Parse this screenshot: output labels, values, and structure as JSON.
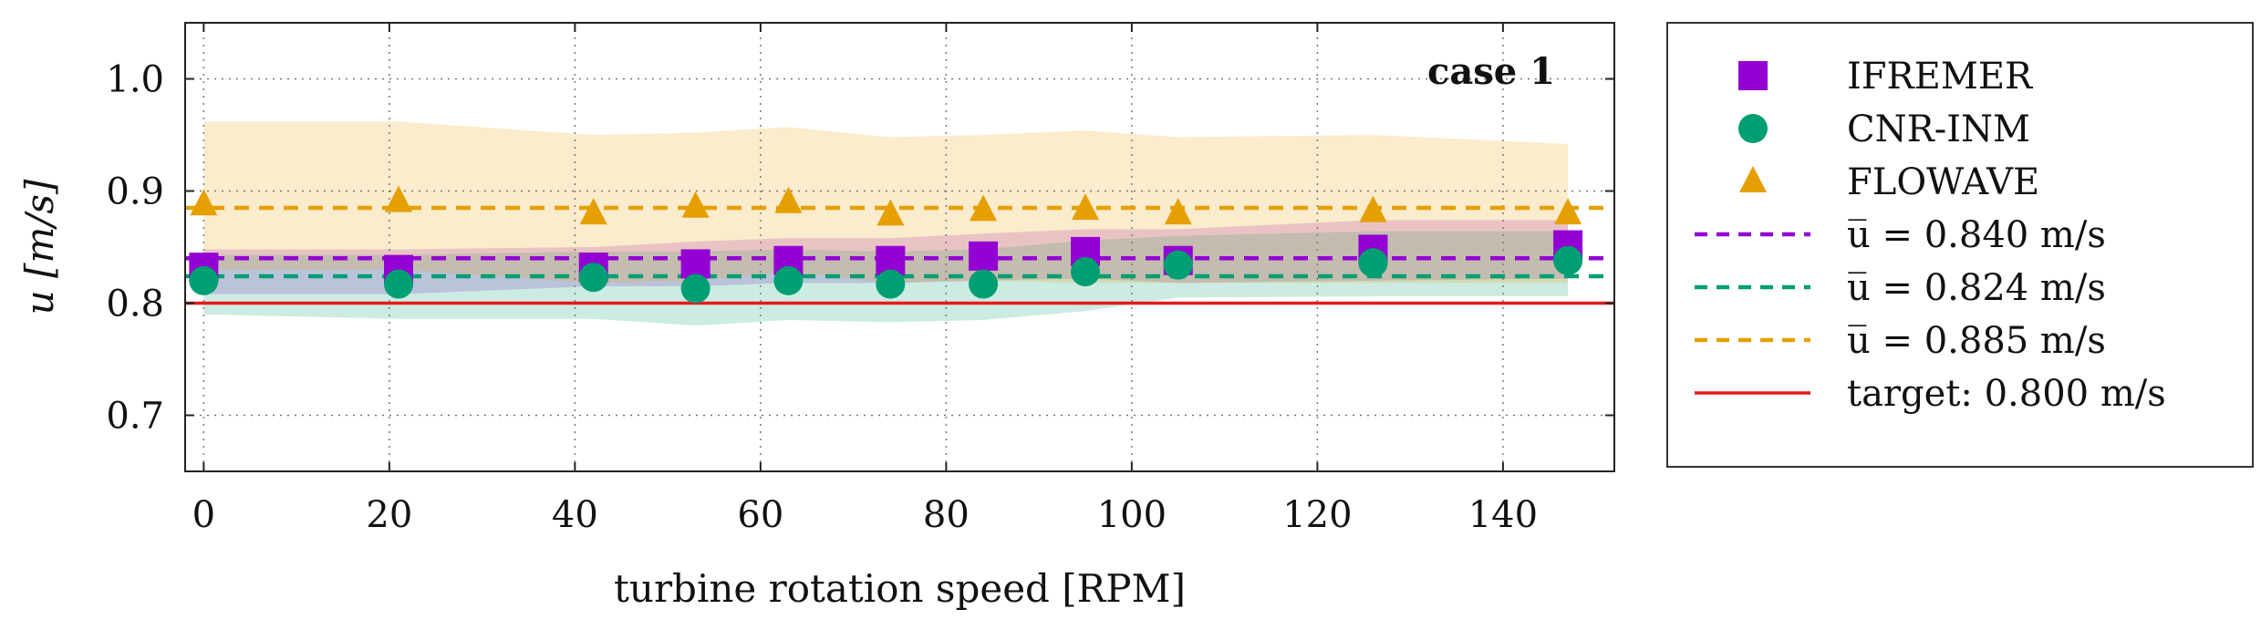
{
  "chart_data": {
    "type": "scatter",
    "annotation": "case 1",
    "xlabel": "turbine rotation speed [RPM]",
    "ylabel": "u [m/s]",
    "xlim": [
      -2,
      152
    ],
    "ylim": [
      0.65,
      1.05
    ],
    "xticks": [
      0,
      20,
      40,
      60,
      80,
      100,
      120,
      140
    ],
    "yticks": [
      0.7,
      0.8,
      0.9,
      1.0
    ],
    "xtick_labels": [
      "0",
      "20",
      "40",
      "60",
      "80",
      "100",
      "120",
      "140"
    ],
    "ytick_labels": [
      "0.7",
      "0.8",
      "0.9",
      "1.0"
    ],
    "grid": true,
    "legend_position": "outside-right",
    "series": [
      {
        "name": "Ifremer",
        "label": "IFREMER",
        "marker": "square",
        "color": "#9400D3",
        "x": [
          0,
          21,
          42,
          53,
          63,
          74,
          84,
          95,
          105,
          126,
          147
        ],
        "y": [
          0.832,
          0.83,
          0.832,
          0.835,
          0.838,
          0.838,
          0.842,
          0.846,
          0.838,
          0.848,
          0.852
        ],
        "band_upper": [
          0.848,
          0.848,
          0.85,
          0.855,
          0.858,
          0.858,
          0.862,
          0.866,
          0.866,
          0.874,
          0.874
        ],
        "band_lower": [
          0.808,
          0.808,
          0.815,
          0.815,
          0.818,
          0.818,
          0.82,
          0.822,
          0.818,
          0.82,
          0.822
        ]
      },
      {
        "name": "Cnr-Inm",
        "label": "CNR-INM",
        "marker": "circle",
        "color": "#009E73",
        "x": [
          0,
          21,
          42,
          53,
          63,
          74,
          84,
          95,
          105,
          126,
          147
        ],
        "y": [
          0.82,
          0.817,
          0.823,
          0.813,
          0.82,
          0.817,
          0.817,
          0.828,
          0.834,
          0.836,
          0.838
        ],
        "band_upper": [
          0.843,
          0.843,
          0.846,
          0.846,
          0.848,
          0.846,
          0.848,
          0.856,
          0.86,
          0.864,
          0.864
        ],
        "band_lower": [
          0.79,
          0.786,
          0.786,
          0.78,
          0.785,
          0.783,
          0.785,
          0.793,
          0.805,
          0.806,
          0.806
        ]
      },
      {
        "name": "FloWave",
        "label": "FLOWAVE",
        "marker": "triangle",
        "color": "#E69F00",
        "x": [
          0,
          21,
          42,
          53,
          63,
          74,
          84,
          95,
          105,
          126,
          147
        ],
        "y": [
          0.888,
          0.891,
          0.88,
          0.886,
          0.89,
          0.879,
          0.883,
          0.884,
          0.88,
          0.882,
          0.88
        ],
        "band_upper": [
          0.962,
          0.962,
          0.95,
          0.952,
          0.957,
          0.948,
          0.95,
          0.954,
          0.948,
          0.95,
          0.942
        ],
        "band_lower": [
          0.83,
          0.83,
          0.818,
          0.82,
          0.828,
          0.818,
          0.82,
          0.818,
          0.818,
          0.818,
          0.818
        ]
      }
    ],
    "reference_lines": [
      {
        "label": "u̅ = 0.840 m/s",
        "value": 0.84,
        "color": "#9400D3",
        "style": "dashed"
      },
      {
        "label": "u̅ = 0.824 m/s",
        "value": 0.824,
        "color": "#009E73",
        "style": "dashed"
      },
      {
        "label": "u̅ = 0.885 m/s",
        "value": 0.885,
        "color": "#E69F00",
        "style": "dashed"
      },
      {
        "label": "target: 0.800 m/s",
        "value": 0.8,
        "color": "#E41A1C",
        "style": "solid"
      }
    ]
  }
}
